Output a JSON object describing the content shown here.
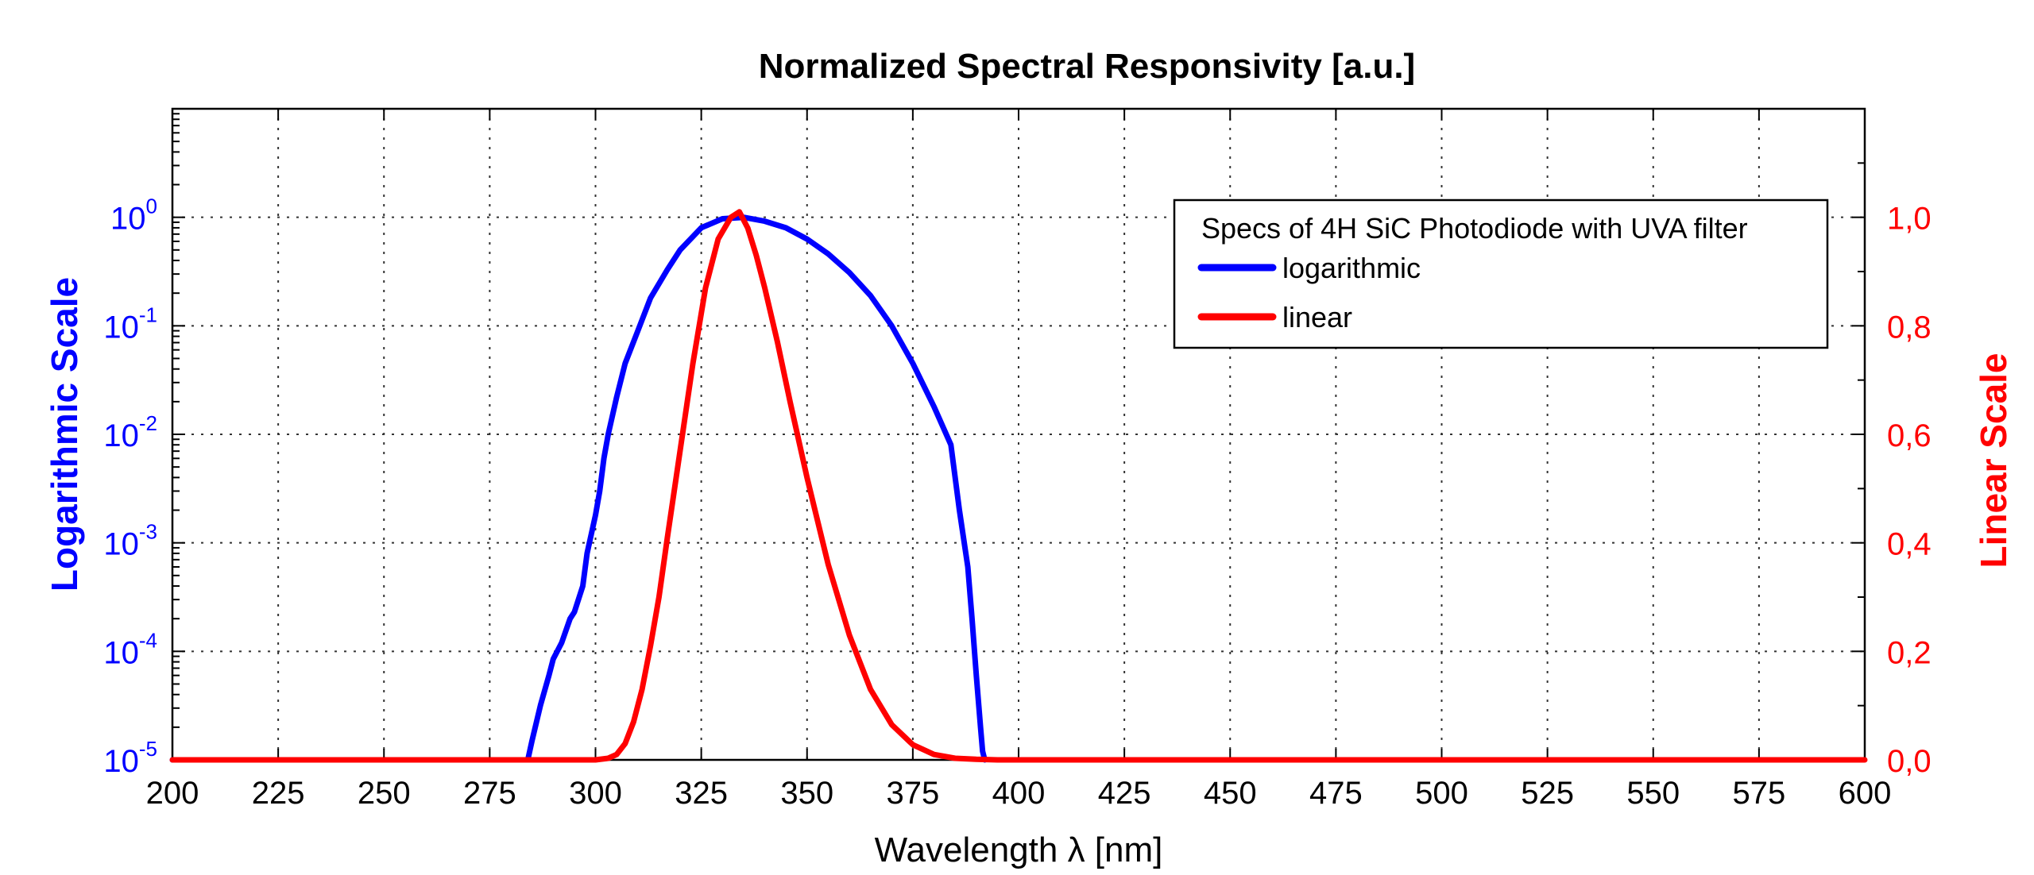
{
  "chart_data": {
    "type": "line",
    "title": "Normalized Spectral Responsivity [a.u.]",
    "xlabel": "Wavelength λ [nm]",
    "ylabel_left": "Logarithmic Scale",
    "ylabel_right": "Linear Scale",
    "xlim": [
      200,
      600
    ],
    "ylim_left": [
      1e-05,
      10
    ],
    "ylim_right": [
      0,
      1.2
    ],
    "y_left_scale": "log",
    "y_right_scale": "linear",
    "grid": true,
    "x_ticks": [
      200,
      225,
      250,
      275,
      300,
      325,
      350,
      375,
      400,
      425,
      450,
      475,
      500,
      525,
      550,
      575,
      600
    ],
    "x_tick_labels": [
      "200",
      "225",
      "250",
      "275",
      "300",
      "325",
      "350",
      "375",
      "400",
      "425",
      "450",
      "475",
      "500",
      "525",
      "550",
      "575",
      "600"
    ],
    "y_left_ticks": [
      {
        "base": "10",
        "exp": "-5",
        "value": 1e-05
      },
      {
        "base": "10",
        "exp": "-4",
        "value": 0.0001
      },
      {
        "base": "10",
        "exp": "-3",
        "value": 0.001
      },
      {
        "base": "10",
        "exp": "-2",
        "value": 0.01
      },
      {
        "base": "10",
        "exp": "-1",
        "value": 0.1
      },
      {
        "base": "10",
        "exp": "0",
        "value": 1
      }
    ],
    "y_right_ticks": [
      0,
      0.2,
      0.4,
      0.6,
      0.8,
      1.0
    ],
    "y_right_tick_labels": [
      "0,0",
      "0,2",
      "0,4",
      "0,6",
      "0,8",
      "1,0"
    ],
    "legend": {
      "title": "Specs of 4H SiC Photodiode with UVA filter",
      "position": "top-right"
    },
    "series": [
      {
        "name": "logarithmic",
        "axis": "left",
        "color": "#0000ff",
        "x": [
          200,
          284,
          285,
          287,
          289,
          290,
          292,
          294,
          295,
          297,
          298,
          300,
          301,
          302,
          303,
          305,
          307,
          310,
          313,
          317,
          320,
          325,
          330,
          335,
          340,
          345,
          350,
          355,
          360,
          365,
          370,
          375,
          380,
          384,
          386,
          388,
          389,
          390,
          391,
          391.5,
          392
        ],
        "y": [
          1e-05,
          1e-05,
          1.5e-05,
          3.2e-05,
          6e-05,
          8.5e-05,
          0.00012,
          0.0002,
          0.00023,
          0.0004,
          0.0008,
          0.0018,
          0.003,
          0.006,
          0.01,
          0.022,
          0.045,
          0.09,
          0.18,
          0.33,
          0.5,
          0.8,
          0.97,
          1.0,
          0.92,
          0.8,
          0.63,
          0.46,
          0.31,
          0.19,
          0.1,
          0.045,
          0.018,
          0.008,
          0.002,
          0.0006,
          0.0002,
          6e-05,
          2e-05,
          1.2e-05,
          1e-05
        ]
      },
      {
        "name": "linear",
        "axis": "right",
        "color": "#ff0000",
        "x": [
          200,
          300,
          303,
          305,
          307,
          309,
          311,
          313,
          315,
          317,
          320,
          323,
          326,
          329,
          332,
          334,
          336,
          338,
          340,
          343,
          346,
          350,
          355,
          360,
          365,
          370,
          375,
          380,
          385,
          390,
          395,
          600
        ],
        "y": [
          0,
          0,
          0.003,
          0.01,
          0.03,
          0.07,
          0.13,
          0.21,
          0.3,
          0.41,
          0.57,
          0.73,
          0.87,
          0.96,
          1.0,
          1.01,
          0.98,
          0.93,
          0.87,
          0.77,
          0.66,
          0.52,
          0.36,
          0.23,
          0.13,
          0.065,
          0.028,
          0.01,
          0.003,
          0.001,
          0,
          0
        ]
      }
    ]
  }
}
